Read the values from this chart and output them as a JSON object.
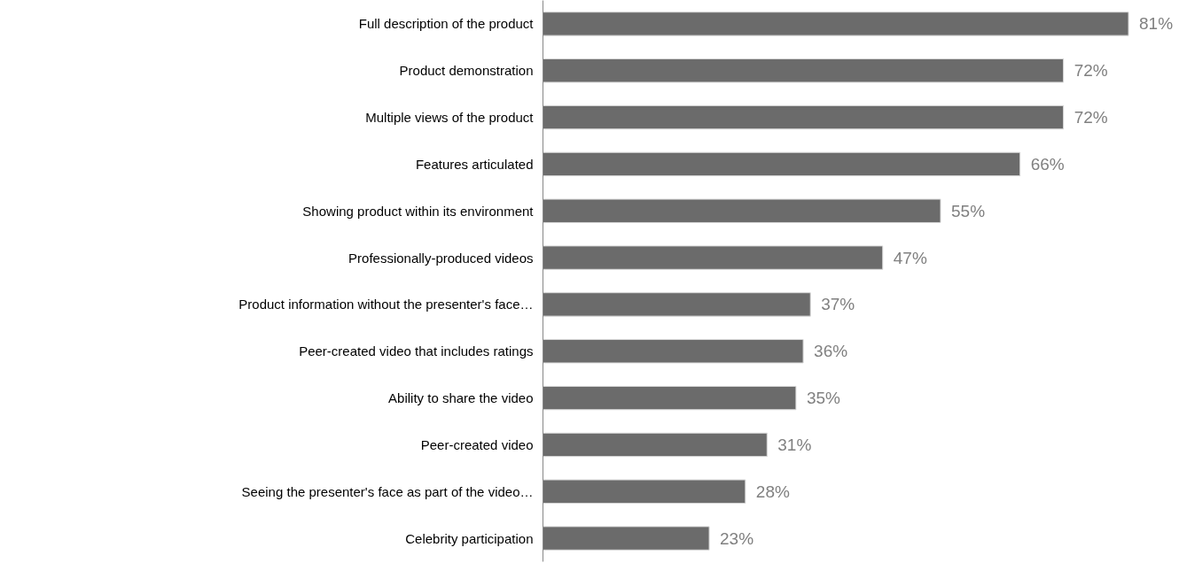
{
  "chart_data": {
    "type": "bar",
    "orientation": "horizontal",
    "categories": [
      "Full description of the product",
      "Product demonstration",
      "Multiple views of the product",
      "Features articulated",
      "Showing product within its environment",
      "Professionally-produced videos",
      "Product information without the presenter's face…",
      "Peer-created video that includes ratings",
      "Ability to share the video",
      "Peer-created video",
      "Seeing the presenter's face as part of the video…",
      "Celebrity participation"
    ],
    "values": [
      81,
      72,
      72,
      66,
      55,
      47,
      37,
      36,
      35,
      31,
      28,
      23
    ],
    "value_labels": [
      "81%",
      "72%",
      "72%",
      "66%",
      "55%",
      "47%",
      "37%",
      "36%",
      "35%",
      "31%",
      "28%",
      "23%"
    ],
    "color": "#6b6b6b"
  }
}
